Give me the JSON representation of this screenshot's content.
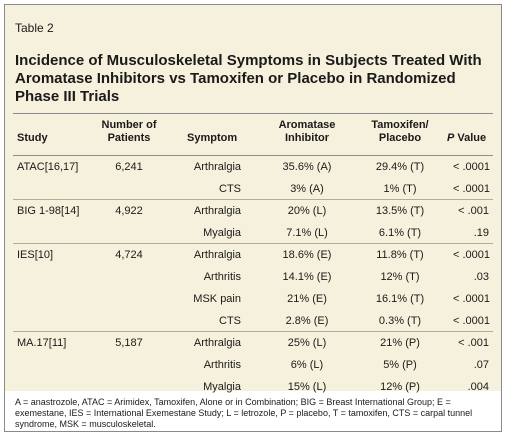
{
  "table_label": "Table 2",
  "title": "Incidence of Musculoskeletal Symptoms in Subjects Treated With Aromatase Inhibitors vs Tamoxifen or Placebo in Randomized Phase III Trials",
  "headers": {
    "study": "Study",
    "patients_line1": "Number of",
    "patients_line2": "Patients",
    "symptom": "Symptom",
    "ai_line1": "Aromatase",
    "ai_line2": "Inhibitor",
    "tam_line1": "Tamoxifen/",
    "tam_line2": "Placebo",
    "p_italic": "P",
    "p_rest": "Value"
  },
  "rows": [
    {
      "study": "ATAC[16,17]",
      "patients": "6,241",
      "symptom": "Arthralgia",
      "ai": "35.6% (A)",
      "tam": "29.4% (T)",
      "p": "< .0001"
    },
    {
      "study": "",
      "patients": "",
      "symptom": "CTS",
      "ai": "3% (A)",
      "tam": "1% (T)",
      "p": "< .0001"
    },
    {
      "study": "BIG 1-98[14]",
      "patients": "4,922",
      "symptom": "Arthralgia",
      "ai": "20% (L)",
      "tam": "13.5% (T)",
      "p": "< .001"
    },
    {
      "study": "",
      "patients": "",
      "symptom": "Myalgia",
      "ai": "7.1% (L)",
      "tam": "6.1% (T)",
      "p": ".19"
    },
    {
      "study": "IES[10]",
      "patients": "4,724",
      "symptom": "Arthralgia",
      "ai": "18.6% (E)",
      "tam": "11.8% (T)",
      "p": "< .0001"
    },
    {
      "study": "",
      "patients": "",
      "symptom": "Arthritis",
      "ai": "14.1% (E)",
      "tam": "12% (T)",
      "p": ".03"
    },
    {
      "study": "",
      "patients": "",
      "symptom": "MSK pain",
      "ai": "21% (E)",
      "tam": "16.1% (T)",
      "p": "< .0001"
    },
    {
      "study": "",
      "patients": "",
      "symptom": "CTS",
      "ai": "2.8% (E)",
      "tam": "0.3% (T)",
      "p": "< .0001"
    },
    {
      "study": "MA.17[11]",
      "patients": "5,187",
      "symptom": "Arthralgia",
      "ai": "25% (L)",
      "tam": "21% (P)",
      "p": "< .001"
    },
    {
      "study": "",
      "patients": "",
      "symptom": "Arthritis",
      "ai": "6% (L)",
      "tam": "5% (P)",
      "p": ".07"
    },
    {
      "study": "",
      "patients": "",
      "symptom": "Myalgia",
      "ai": "15% (L)",
      "tam": "12% (P)",
      "p": ".004"
    }
  ],
  "group_separators_after_row": [
    1,
    3,
    7
  ],
  "footnote": "A = anastrozole, ATAC = Arimidex, Tamoxifen, Alone or in Combination; BIG = Breast International Group; E = exemestane, IES = International Exemestane Study; L = letrozole, P = placebo, T = tamoxifen, CTS = carpal tunnel syndrome, MSK = musculoskeletal.",
  "colors": {
    "panel_background": "#f6f1dc",
    "border": "#8a8a8a"
  }
}
